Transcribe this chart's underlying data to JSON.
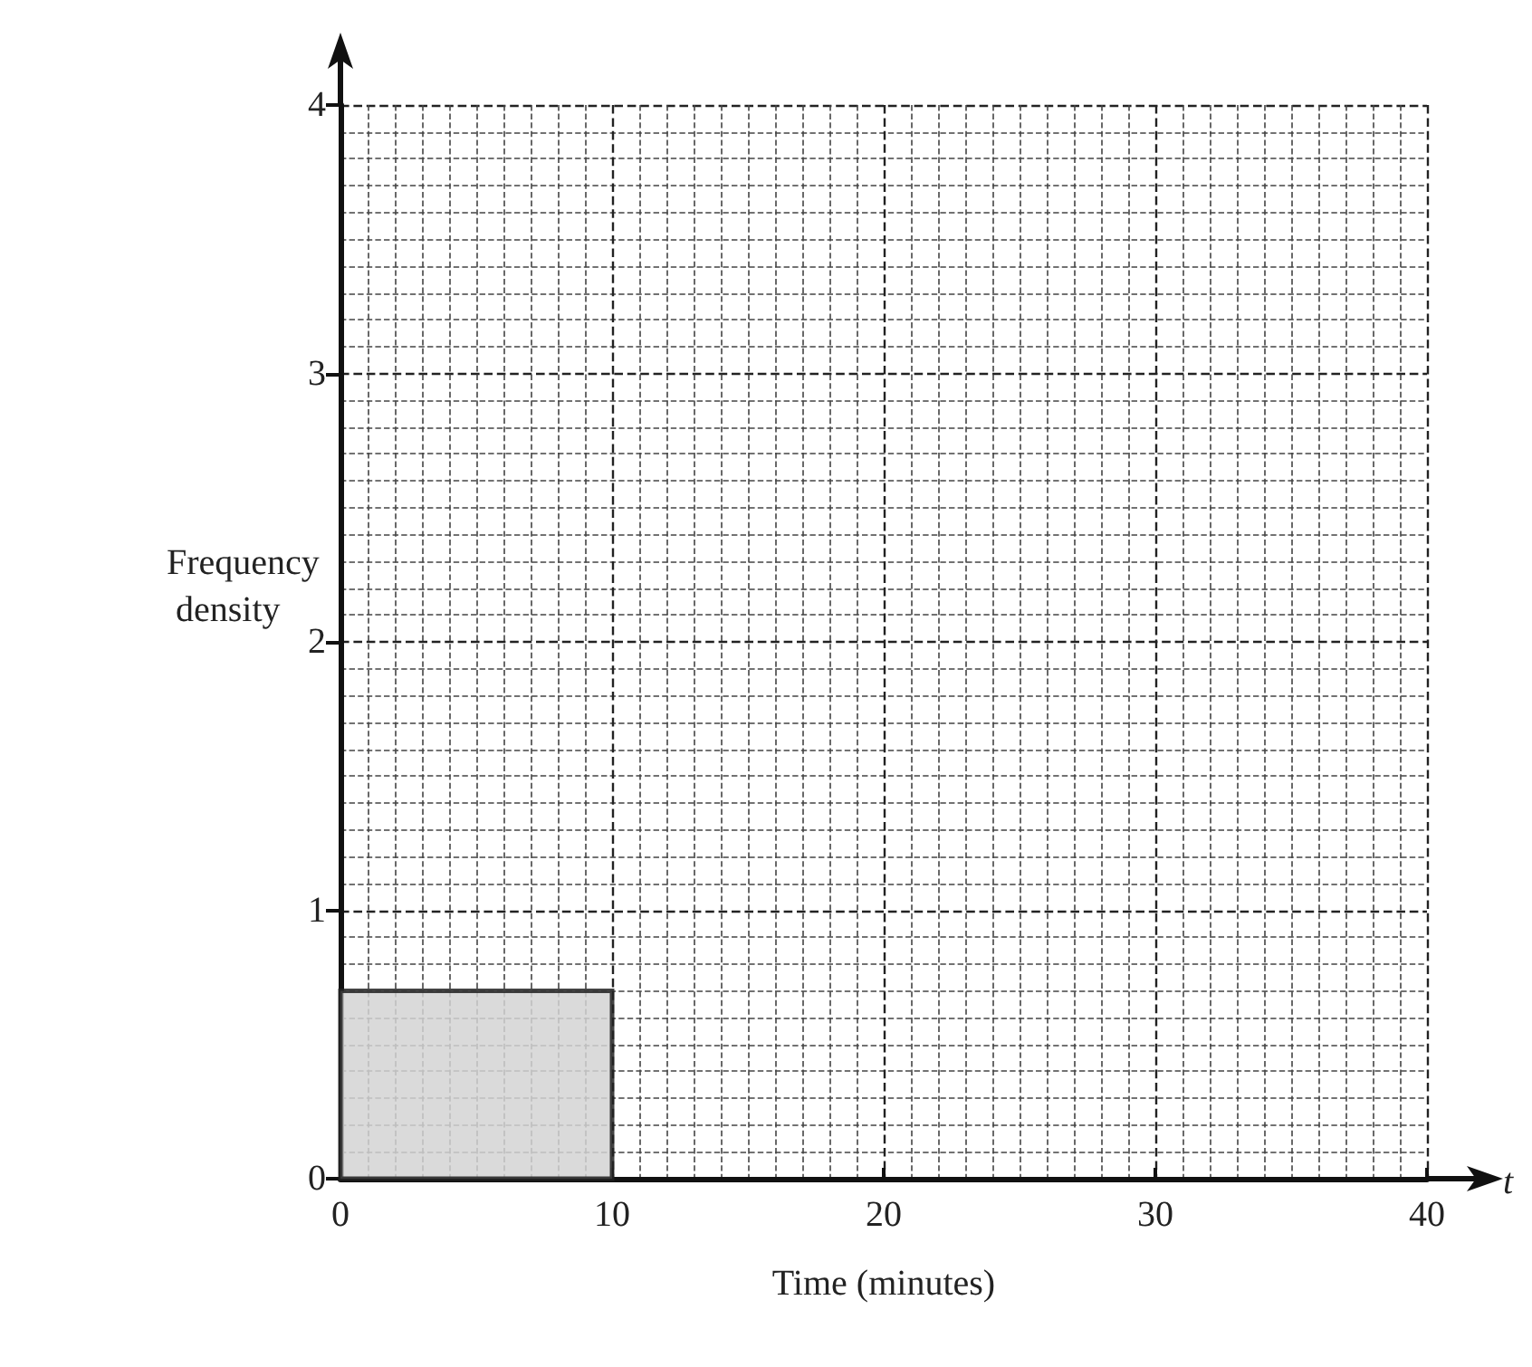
{
  "chart_data": {
    "type": "histogram",
    "xlabel": "Time (minutes)",
    "ylabel": "Frequency density",
    "bins": [
      0,
      10
    ],
    "values": [
      0.7
    ],
    "color": "#d4d4d4",
    "xlim": [
      0,
      40
    ],
    "ylim": [
      0,
      4
    ],
    "xticks": [
      0,
      10,
      20,
      30,
      40
    ],
    "yticks": [
      0,
      1,
      2,
      3,
      4
    ],
    "grid": true,
    "annotations": [
      "t"
    ]
  }
}
